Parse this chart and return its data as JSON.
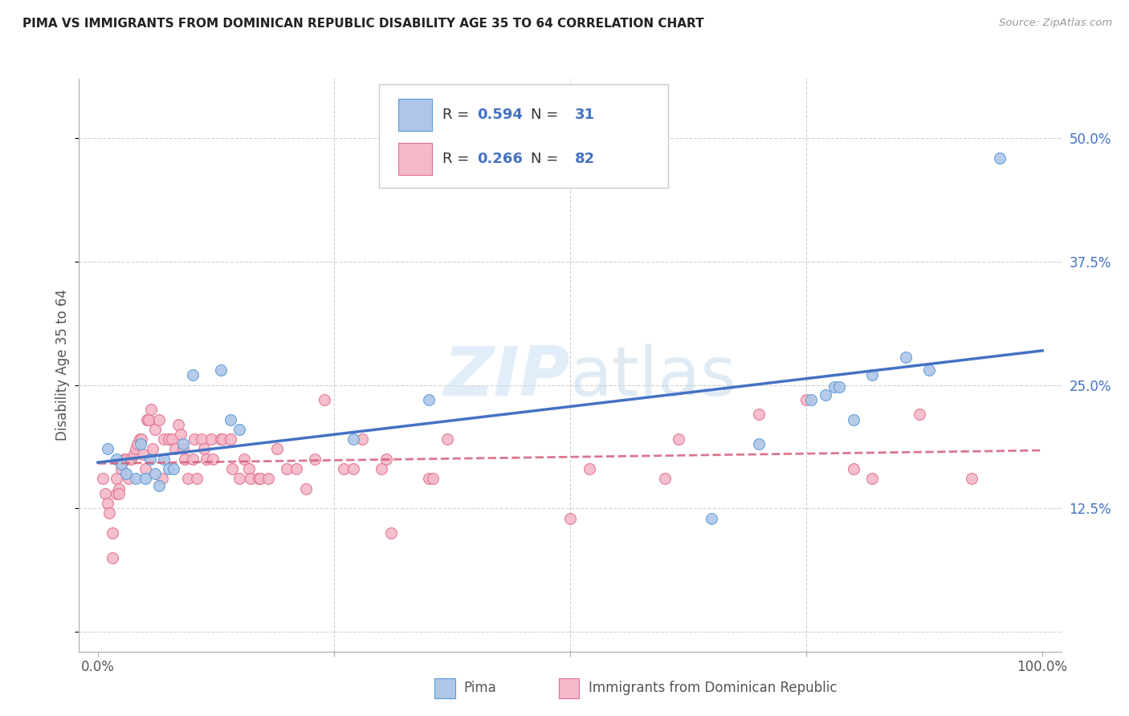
{
  "title": "PIMA VS IMMIGRANTS FROM DOMINICAN REPUBLIC DISABILITY AGE 35 TO 64 CORRELATION CHART",
  "source": "Source: ZipAtlas.com",
  "ylabel": "Disability Age 35 to 64",
  "background_color": "#ffffff",
  "grid_color": "#d0d0d0",
  "watermark": "ZIPatlas",
  "r_pima": 0.594,
  "n_pima": 31,
  "r_dr": 0.266,
  "n_dr": 82,
  "pima_color": "#aec6e8",
  "pima_edge_color": "#5b9bd5",
  "pima_line_color": "#4472c4",
  "dr_color": "#f4b8c8",
  "dr_edge_color": "#e07090",
  "dr_line_color": "#d45f7a",
  "xlim": [
    -0.02,
    1.02
  ],
  "ylim": [
    -0.02,
    0.56
  ],
  "xticks": [
    0.0,
    0.25,
    0.5,
    0.75,
    1.0
  ],
  "xtick_labels": [
    "0.0%",
    "",
    "",
    "",
    "100.0%"
  ],
  "yticks": [
    0.0,
    0.125,
    0.25,
    0.375,
    0.5
  ],
  "ytick_labels": [
    "",
    "12.5%",
    "25.0%",
    "37.5%",
    "50.0%"
  ],
  "pima_x": [
    0.01,
    0.02,
    0.025,
    0.03,
    0.04,
    0.045,
    0.05,
    0.055,
    0.06,
    0.065,
    0.07,
    0.075,
    0.08,
    0.09,
    0.1,
    0.13,
    0.14,
    0.15,
    0.27,
    0.35,
    0.65,
    0.7,
    0.755,
    0.77,
    0.78,
    0.785,
    0.8,
    0.82,
    0.855,
    0.88,
    0.955
  ],
  "pima_y": [
    0.185,
    0.175,
    0.17,
    0.16,
    0.155,
    0.19,
    0.155,
    0.175,
    0.16,
    0.148,
    0.175,
    0.165,
    0.165,
    0.19,
    0.26,
    0.265,
    0.215,
    0.205,
    0.195,
    0.235,
    0.115,
    0.19,
    0.235,
    0.24,
    0.248,
    0.248,
    0.215,
    0.26,
    0.278,
    0.265,
    0.48
  ],
  "dr_x": [
    0.005,
    0.008,
    0.01,
    0.012,
    0.015,
    0.015,
    0.02,
    0.02,
    0.022,
    0.022,
    0.025,
    0.028,
    0.03,
    0.032,
    0.035,
    0.038,
    0.04,
    0.042,
    0.044,
    0.046,
    0.048,
    0.05,
    0.052,
    0.054,
    0.056,
    0.058,
    0.06,
    0.065,
    0.068,
    0.07,
    0.075,
    0.078,
    0.082,
    0.085,
    0.088,
    0.09,
    0.092,
    0.095,
    0.1,
    0.102,
    0.105,
    0.11,
    0.112,
    0.115,
    0.12,
    0.122,
    0.13,
    0.132,
    0.14,
    0.142,
    0.15,
    0.155,
    0.16,
    0.162,
    0.17,
    0.172,
    0.18,
    0.19,
    0.2,
    0.21,
    0.22,
    0.23,
    0.24,
    0.26,
    0.27,
    0.28,
    0.3,
    0.305,
    0.31,
    0.35,
    0.355,
    0.37,
    0.5,
    0.52,
    0.6,
    0.615,
    0.7,
    0.75,
    0.8,
    0.82,
    0.87,
    0.925
  ],
  "dr_y": [
    0.155,
    0.14,
    0.13,
    0.12,
    0.1,
    0.075,
    0.14,
    0.155,
    0.145,
    0.14,
    0.165,
    0.175,
    0.175,
    0.155,
    0.175,
    0.18,
    0.185,
    0.19,
    0.195,
    0.195,
    0.18,
    0.165,
    0.215,
    0.215,
    0.225,
    0.185,
    0.205,
    0.215,
    0.155,
    0.195,
    0.195,
    0.195,
    0.185,
    0.21,
    0.2,
    0.185,
    0.175,
    0.155,
    0.175,
    0.195,
    0.155,
    0.195,
    0.185,
    0.175,
    0.195,
    0.175,
    0.195,
    0.195,
    0.195,
    0.165,
    0.155,
    0.175,
    0.165,
    0.155,
    0.155,
    0.155,
    0.155,
    0.185,
    0.165,
    0.165,
    0.145,
    0.175,
    0.235,
    0.165,
    0.165,
    0.195,
    0.165,
    0.175,
    0.1,
    0.155,
    0.155,
    0.195,
    0.115,
    0.165,
    0.155,
    0.195,
    0.22,
    0.235,
    0.165,
    0.155,
    0.22,
    0.155
  ]
}
